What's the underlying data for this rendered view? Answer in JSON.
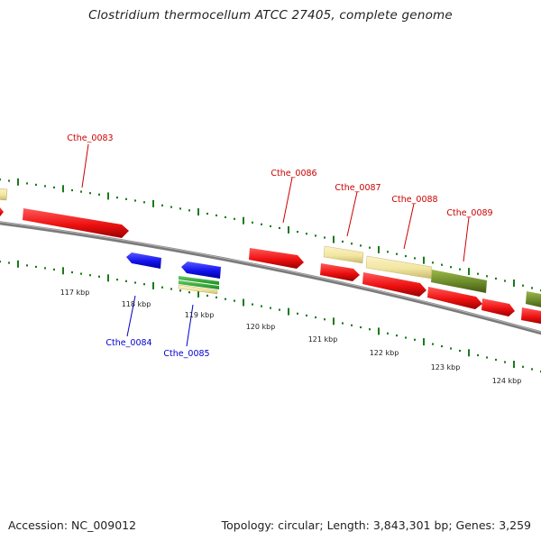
{
  "title": "Clostridium thermocellum ATCC 27405, complete genome",
  "footer": {
    "accession": "Accession: NC_009012",
    "summary": "Topology: circular; Length: 3,843,301 bp; Genes: 3,259"
  },
  "colors": {
    "forward_label": "#cc0000",
    "reverse_label": "#0000cc",
    "tick": "#1a7a1a",
    "backbone": "#7a7a7a",
    "red_gene": "#ee1111",
    "blue_gene": "#1111ee",
    "tan_gene": "#f2e6a0",
    "olive_gene": "#6b8a2a"
  },
  "kbp_labels": [
    "117 kbp",
    "118 kbp",
    "119 kbp",
    "120 kbp",
    "121 kbp",
    "122 kbp",
    "123 kbp",
    "124 kbp"
  ],
  "gene_labels": {
    "cthe_0083": "Cthe_0083",
    "cthe_0084": "Cthe_0084",
    "cthe_0085": "Cthe_0085",
    "cthe_0086": "Cthe_0086",
    "cthe_0087": "Cthe_0087",
    "cthe_0088": "Cthe_0088",
    "cthe_0089": "Cthe_0089"
  }
}
